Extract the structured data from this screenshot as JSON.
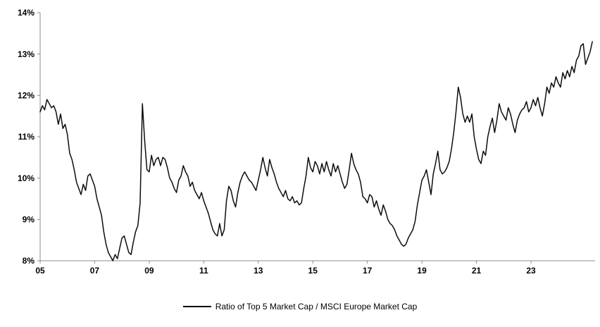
{
  "chart_data": {
    "type": "line",
    "title": "",
    "xlabel": "",
    "ylabel": "",
    "grid": false,
    "legend_position": "bottom",
    "axis_color": "#8c8c8c",
    "line_color": "#0d0d0d",
    "xlim": [
      2005,
      2025.35
    ],
    "ylim": [
      8,
      14
    ],
    "x_start_year": 2005,
    "x_step_months": 1,
    "y_ticks": [
      {
        "value": 8,
        "label": "8%"
      },
      {
        "value": 9,
        "label": "9%"
      },
      {
        "value": 10,
        "label": "10%"
      },
      {
        "value": 11,
        "label": "11%"
      },
      {
        "value": 12,
        "label": "12%"
      },
      {
        "value": 13,
        "label": "13%"
      },
      {
        "value": 14,
        "label": "14%"
      }
    ],
    "x_ticks": [
      {
        "value": 2005,
        "label": "05"
      },
      {
        "value": 2007,
        "label": "07"
      },
      {
        "value": 2009,
        "label": "09"
      },
      {
        "value": 2011,
        "label": "11"
      },
      {
        "value": 2013,
        "label": "13"
      },
      {
        "value": 2015,
        "label": "15"
      },
      {
        "value": 2017,
        "label": "17"
      },
      {
        "value": 2019,
        "label": "19"
      },
      {
        "value": 2021,
        "label": "21"
      },
      {
        "value": 2023,
        "label": "23"
      }
    ],
    "series": [
      {
        "name": "Ratio of Top 5 Market Cap / MSCI Europe Market Cap",
        "color": "#0d0d0d",
        "values": [
          11.6,
          11.75,
          11.65,
          11.9,
          11.8,
          11.7,
          11.75,
          11.6,
          11.3,
          11.55,
          11.2,
          11.3,
          11.05,
          10.6,
          10.45,
          10.2,
          9.9,
          9.75,
          9.6,
          9.85,
          9.7,
          10.05,
          10.1,
          9.95,
          9.8,
          9.5,
          9.3,
          9.1,
          8.7,
          8.4,
          8.2,
          8.1,
          8.0,
          8.15,
          8.05,
          8.3,
          8.55,
          8.6,
          8.4,
          8.2,
          8.15,
          8.45,
          8.7,
          8.85,
          9.4,
          11.8,
          10.9,
          10.2,
          10.15,
          10.55,
          10.3,
          10.45,
          10.5,
          10.3,
          10.5,
          10.45,
          10.25,
          10.0,
          9.9,
          9.75,
          9.65,
          9.95,
          10.05,
          10.3,
          10.15,
          10.05,
          9.8,
          9.9,
          9.7,
          9.6,
          9.5,
          9.65,
          9.45,
          9.3,
          9.15,
          8.95,
          8.75,
          8.65,
          8.6,
          8.9,
          8.6,
          8.75,
          9.45,
          9.8,
          9.7,
          9.45,
          9.3,
          9.65,
          9.9,
          10.05,
          10.15,
          10.05,
          9.95,
          9.9,
          9.8,
          9.7,
          9.95,
          10.2,
          10.5,
          10.25,
          10.05,
          10.45,
          10.25,
          10.1,
          9.9,
          9.75,
          9.65,
          9.55,
          9.7,
          9.5,
          9.45,
          9.55,
          9.4,
          9.45,
          9.35,
          9.4,
          9.75,
          10.05,
          10.5,
          10.25,
          10.15,
          10.4,
          10.3,
          10.1,
          10.35,
          10.15,
          10.4,
          10.2,
          10.05,
          10.35,
          10.15,
          10.3,
          10.1,
          9.9,
          9.75,
          9.85,
          10.2,
          10.6,
          10.35,
          10.2,
          10.1,
          9.9,
          9.55,
          9.5,
          9.4,
          9.6,
          9.55,
          9.3,
          9.45,
          9.25,
          9.1,
          9.35,
          9.2,
          9.0,
          8.9,
          8.85,
          8.75,
          8.6,
          8.5,
          8.4,
          8.35,
          8.4,
          8.55,
          8.65,
          8.75,
          8.95,
          9.35,
          9.65,
          9.95,
          10.05,
          10.2,
          9.9,
          9.6,
          10.1,
          10.35,
          10.65,
          10.2,
          10.1,
          10.15,
          10.25,
          10.4,
          10.7,
          11.1,
          11.6,
          12.2,
          11.95,
          11.55,
          11.35,
          11.5,
          11.35,
          11.55,
          11.0,
          10.7,
          10.45,
          10.35,
          10.65,
          10.55,
          11.0,
          11.25,
          11.45,
          11.1,
          11.4,
          11.8,
          11.6,
          11.5,
          11.4,
          11.7,
          11.55,
          11.3,
          11.1,
          11.4,
          11.55,
          11.65,
          11.7,
          11.85,
          11.6,
          11.7,
          11.9,
          11.75,
          11.95,
          11.7,
          11.5,
          11.8,
          12.2,
          12.05,
          12.3,
          12.2,
          12.45,
          12.3,
          12.2,
          12.55,
          12.4,
          12.6,
          12.45,
          12.7,
          12.55,
          12.85,
          12.95,
          13.2,
          13.25,
          12.75,
          12.9,
          13.05,
          13.3
        ]
      }
    ]
  },
  "legend": {
    "label": "Ratio of Top 5 Market Cap / MSCI Europe Market Cap"
  }
}
